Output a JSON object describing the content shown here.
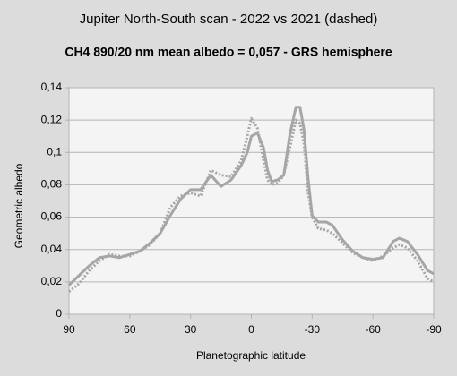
{
  "chart_data": {
    "type": "line",
    "title": "Jupiter North-South scan - 2022 vs 2021 (dashed)",
    "subtitle": "CH4 890/20 nm mean albedo = 0,057 - GRS hemisphere",
    "x_label": "Planetographic latitude",
    "y_label": "Geometric albedo",
    "x": [
      90,
      85,
      80,
      75,
      70,
      65,
      60,
      55,
      50,
      45,
      40,
      35,
      30,
      25,
      20,
      15,
      10,
      5,
      2,
      0,
      -3,
      -6,
      -8,
      -10,
      -13,
      -16,
      -19,
      -22,
      -24,
      -26,
      -28,
      -30,
      -33,
      -37,
      -40,
      -45,
      -50,
      -55,
      -60,
      -65,
      -70,
      -73,
      -77,
      -82,
      -87,
      -90
    ],
    "series": [
      {
        "color": "#a6a6a6",
        "dashed": false,
        "values": [
          0.018,
          0.024,
          0.03,
          0.035,
          0.036,
          0.035,
          0.037,
          0.039,
          0.044,
          0.05,
          0.061,
          0.071,
          0.077,
          0.077,
          0.086,
          0.079,
          0.083,
          0.092,
          0.1,
          0.11,
          0.112,
          0.103,
          0.089,
          0.082,
          0.083,
          0.086,
          0.111,
          0.128,
          0.128,
          0.114,
          0.084,
          0.061,
          0.057,
          0.057,
          0.055,
          0.046,
          0.039,
          0.035,
          0.034,
          0.035,
          0.045,
          0.047,
          0.045,
          0.037,
          0.027,
          0.025
        ]
      },
      {
        "color": "#a6a6a6",
        "dashed": true,
        "values": [
          0.014,
          0.019,
          0.027,
          0.033,
          0.037,
          0.036,
          0.036,
          0.039,
          0.043,
          0.05,
          0.066,
          0.073,
          0.075,
          0.073,
          0.089,
          0.086,
          0.085,
          0.095,
          0.11,
          0.121,
          0.115,
          0.095,
          0.083,
          0.08,
          0.081,
          0.086,
          0.103,
          0.12,
          0.118,
          0.105,
          0.075,
          0.06,
          0.053,
          0.052,
          0.05,
          0.044,
          0.038,
          0.035,
          0.033,
          0.036,
          0.041,
          0.043,
          0.041,
          0.033,
          0.022,
          0.02
        ]
      }
    ],
    "xlim": [
      90,
      -90
    ],
    "xticks": [
      90,
      60,
      30,
      0,
      -30,
      -60,
      -90
    ],
    "ylim": [
      0,
      0.14
    ],
    "yticks": [
      0,
      {
        "value": 0.02,
        "label": "0,02"
      },
      {
        "value": 0.04,
        "label": "0,04"
      },
      {
        "value": 0.06,
        "label": "0,06"
      },
      {
        "value": 0.08,
        "label": "0,08"
      },
      {
        "value": 0.1,
        "label": "0,1"
      },
      {
        "value": 0.12,
        "label": "0,12"
      },
      {
        "value": 0.14,
        "label": "0,14"
      }
    ],
    "grid": true
  }
}
